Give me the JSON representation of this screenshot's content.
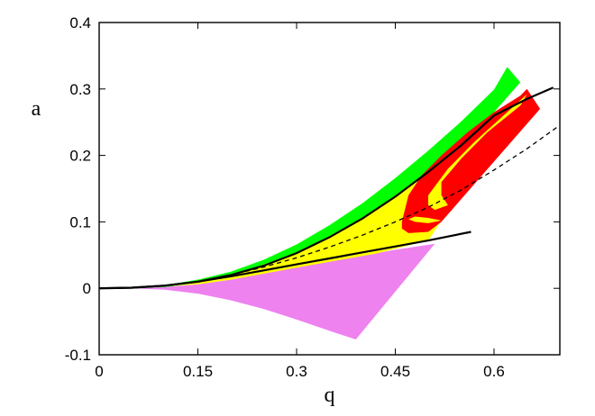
{
  "chart_data": {
    "type": "area",
    "xlabel": "q",
    "ylabel": "a",
    "xlim": [
      0,
      0.7
    ],
    "ylim": [
      -0.1,
      0.4
    ],
    "grid": false,
    "legend": "none",
    "x_ticks": [
      {
        "value": 0,
        "label": "0"
      },
      {
        "value": 0.15,
        "label": "0.15"
      },
      {
        "value": 0.3,
        "label": "0.3"
      },
      {
        "value": 0.45,
        "label": "0.45"
      },
      {
        "value": 0.6,
        "label": "0.6"
      }
    ],
    "y_ticks": [
      {
        "value": -0.1,
        "label": "-0.1"
      },
      {
        "value": 0,
        "label": "0"
      },
      {
        "value": 0.1,
        "label": "0.1"
      },
      {
        "value": 0.2,
        "label": "0.2"
      },
      {
        "value": 0.3,
        "label": "0.3"
      },
      {
        "value": 0.4,
        "label": "0.4"
      }
    ],
    "regions": [
      {
        "color": "#ee82ee",
        "points": [
          [
            0,
            0
          ],
          [
            0.05,
            0.0
          ],
          [
            0.1,
            -0.002
          ],
          [
            0.15,
            -0.008
          ],
          [
            0.2,
            -0.018
          ],
          [
            0.25,
            -0.031
          ],
          [
            0.3,
            -0.047
          ],
          [
            0.35,
            -0.064
          ],
          [
            0.39,
            -0.077
          ],
          [
            0.51,
            0.067
          ],
          [
            0.45,
            0.058
          ],
          [
            0.4,
            0.049
          ],
          [
            0.35,
            0.041
          ],
          [
            0.3,
            0.033
          ],
          [
            0.25,
            0.023
          ],
          [
            0.2,
            0.013
          ],
          [
            0.15,
            0.006
          ],
          [
            0.1,
            0.002
          ],
          [
            0.05,
            0.0
          ]
        ]
      },
      {
        "color": "#00ff00",
        "points": [
          [
            0,
            0
          ],
          [
            0.05,
            0.001
          ],
          [
            0.1,
            0.005
          ],
          [
            0.15,
            0.013
          ],
          [
            0.2,
            0.025
          ],
          [
            0.25,
            0.043
          ],
          [
            0.3,
            0.066
          ],
          [
            0.35,
            0.095
          ],
          [
            0.4,
            0.128
          ],
          [
            0.45,
            0.166
          ],
          [
            0.5,
            0.207
          ],
          [
            0.55,
            0.251
          ],
          [
            0.6,
            0.299
          ],
          [
            0.62,
            0.333
          ],
          [
            0.64,
            0.31
          ],
          [
            0.56,
            0.22
          ],
          [
            0.5,
            0.16
          ],
          [
            0.45,
            0.12
          ],
          [
            0.4,
            0.09
          ],
          [
            0.35,
            0.065
          ],
          [
            0.3,
            0.044
          ],
          [
            0.25,
            0.027
          ],
          [
            0.2,
            0.015
          ],
          [
            0.15,
            0.007
          ],
          [
            0.1,
            0.002
          ],
          [
            0.05,
            0.0
          ]
        ]
      },
      {
        "color": "#ffff00",
        "points": [
          [
            0.1,
            0.003
          ],
          [
            0.2,
            0.019
          ],
          [
            0.3,
            0.053
          ],
          [
            0.4,
            0.105
          ],
          [
            0.45,
            0.138
          ],
          [
            0.5,
            0.175
          ],
          [
            0.55,
            0.215
          ],
          [
            0.6,
            0.255
          ],
          [
            0.64,
            0.29
          ],
          [
            0.65,
            0.297
          ],
          [
            0.5,
            0.072
          ],
          [
            0.42,
            0.052
          ],
          [
            0.35,
            0.04
          ],
          [
            0.3,
            0.031
          ],
          [
            0.25,
            0.022
          ],
          [
            0.2,
            0.013
          ],
          [
            0.15,
            0.006
          ]
        ]
      },
      {
        "color": "#ff0000",
        "points": [
          [
            0.46,
            0.1
          ],
          [
            0.47,
            0.14
          ],
          [
            0.49,
            0.17
          ],
          [
            0.52,
            0.2
          ],
          [
            0.56,
            0.235
          ],
          [
            0.6,
            0.265
          ],
          [
            0.64,
            0.29
          ],
          [
            0.65,
            0.3
          ],
          [
            0.67,
            0.27
          ],
          [
            0.52,
            0.1
          ],
          [
            0.5,
            0.085
          ],
          [
            0.47,
            0.083
          ],
          [
            0.46,
            0.09
          ]
        ]
      },
      {
        "color": "#ffff00",
        "points": [
          [
            0.5,
            0.14
          ],
          [
            0.53,
            0.18
          ],
          [
            0.57,
            0.22
          ],
          [
            0.62,
            0.265
          ],
          [
            0.65,
            0.292
          ],
          [
            0.64,
            0.275
          ],
          [
            0.59,
            0.235
          ],
          [
            0.55,
            0.195
          ],
          [
            0.52,
            0.16
          ],
          [
            0.52,
            0.14
          ],
          [
            0.53,
            0.125
          ],
          [
            0.51,
            0.118
          ],
          [
            0.5,
            0.125
          ]
        ]
      },
      {
        "color": "#ffff00",
        "points": [
          [
            0.47,
            0.104
          ],
          [
            0.48,
            0.1
          ],
          [
            0.5,
            0.098
          ],
          [
            0.52,
            0.102
          ],
          [
            0.5,
            0.106
          ],
          [
            0.48,
            0.108
          ]
        ]
      }
    ],
    "curves": [
      {
        "style": "solid",
        "points": [
          [
            0,
            0
          ],
          [
            0.05,
            0.001
          ],
          [
            0.1,
            0.004
          ],
          [
            0.15,
            0.01
          ],
          [
            0.2,
            0.02
          ],
          [
            0.25,
            0.034
          ],
          [
            0.3,
            0.053
          ],
          [
            0.35,
            0.077
          ],
          [
            0.4,
            0.105
          ],
          [
            0.45,
            0.138
          ],
          [
            0.5,
            0.175
          ],
          [
            0.55,
            0.215
          ],
          [
            0.6,
            0.26
          ],
          [
            0.65,
            0.285
          ],
          [
            0.69,
            0.302
          ]
        ]
      },
      {
        "style": "solid",
        "points": [
          [
            0,
            0
          ],
          [
            0.05,
            0.001
          ],
          [
            0.1,
            0.004
          ],
          [
            0.15,
            0.01
          ],
          [
            0.2,
            0.018
          ],
          [
            0.25,
            0.027
          ],
          [
            0.3,
            0.036
          ],
          [
            0.35,
            0.045
          ],
          [
            0.4,
            0.054
          ],
          [
            0.45,
            0.063
          ],
          [
            0.5,
            0.072
          ],
          [
            0.565,
            0.085
          ]
        ]
      },
      {
        "style": "dashed",
        "points": [
          [
            0.15,
            0.01
          ],
          [
            0.2,
            0.02
          ],
          [
            0.25,
            0.032
          ],
          [
            0.3,
            0.046
          ],
          [
            0.35,
            0.062
          ],
          [
            0.4,
            0.08
          ],
          [
            0.45,
            0.1
          ],
          [
            0.5,
            0.122
          ],
          [
            0.55,
            0.148
          ],
          [
            0.6,
            0.178
          ],
          [
            0.65,
            0.21
          ],
          [
            0.695,
            0.242
          ]
        ]
      }
    ]
  }
}
